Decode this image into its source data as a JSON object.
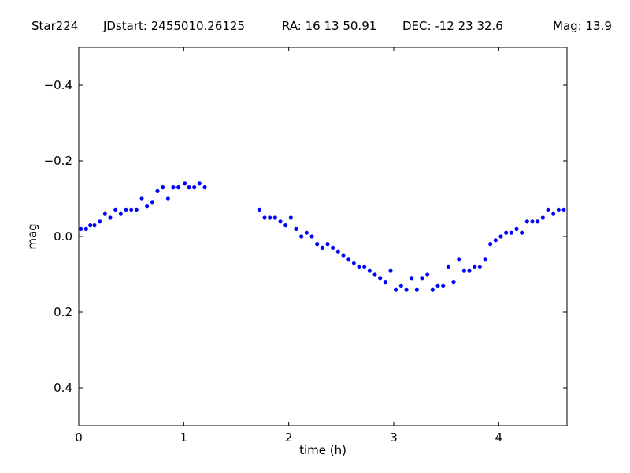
{
  "header": {
    "star": "Star224",
    "jdstart": "JDstart: 2455010.26125",
    "ra": "RA: 16 13 50.91",
    "dec": "DEC: -12 23 32.6",
    "mag": "Mag: 13.9"
  },
  "chart_data": {
    "type": "scatter",
    "xlabel": "time (h)",
    "ylabel": "mag",
    "xlim": [
      0,
      4.65
    ],
    "ylim": [
      -0.5,
      0.5
    ],
    "y_inverted": true,
    "grid": false,
    "marker_color": "#0000ff",
    "xticks": [
      0,
      1,
      2,
      3,
      4
    ],
    "xtick_labels": [
      "0",
      "1",
      "2",
      "3",
      "4"
    ],
    "yticks": [
      -0.4,
      -0.2,
      0.0,
      0.2,
      0.4
    ],
    "ytick_labels": [
      "−0.4",
      "−0.2",
      "0.0",
      "0.2",
      "0.4"
    ],
    "x": [
      0.02,
      0.07,
      0.11,
      0.15,
      0.2,
      0.25,
      0.3,
      0.35,
      0.4,
      0.45,
      0.5,
      0.55,
      0.6,
      0.65,
      0.7,
      0.75,
      0.8,
      0.85,
      0.9,
      0.95,
      1.01,
      1.05,
      1.1,
      1.15,
      1.2,
      1.72,
      1.77,
      1.82,
      1.87,
      1.92,
      1.97,
      2.02,
      2.07,
      2.12,
      2.17,
      2.22,
      2.27,
      2.32,
      2.37,
      2.42,
      2.47,
      2.52,
      2.57,
      2.62,
      2.67,
      2.72,
      2.77,
      2.82,
      2.87,
      2.92,
      2.97,
      3.02,
      3.07,
      3.12,
      3.17,
      3.22,
      3.27,
      3.32,
      3.37,
      3.42,
      3.47,
      3.52,
      3.57,
      3.62,
      3.67,
      3.72,
      3.77,
      3.82,
      3.87,
      3.92,
      3.97,
      4.02,
      4.07,
      4.12,
      4.17,
      4.22,
      4.27,
      4.32,
      4.37,
      4.42,
      4.47,
      4.52,
      4.57,
      4.62
    ],
    "y": [
      -0.02,
      -0.02,
      -0.03,
      -0.03,
      -0.04,
      -0.06,
      -0.05,
      -0.07,
      -0.06,
      -0.07,
      -0.07,
      -0.07,
      -0.1,
      -0.08,
      -0.09,
      -0.12,
      -0.13,
      -0.1,
      -0.13,
      -0.13,
      -0.14,
      -0.13,
      -0.13,
      -0.14,
      -0.13,
      -0.07,
      -0.05,
      -0.05,
      -0.05,
      -0.04,
      -0.03,
      -0.05,
      -0.02,
      0.0,
      -0.01,
      0.0,
      0.02,
      0.03,
      0.02,
      0.03,
      0.04,
      0.05,
      0.06,
      0.07,
      0.08,
      0.08,
      0.09,
      0.1,
      0.11,
      0.12,
      0.09,
      0.14,
      0.13,
      0.14,
      0.11,
      0.14,
      0.11,
      0.1,
      0.14,
      0.13,
      0.13,
      0.08,
      0.12,
      0.06,
      0.09,
      0.09,
      0.08,
      0.08,
      0.06,
      0.02,
      0.01,
      0.0,
      -0.01,
      -0.01,
      -0.02,
      -0.01,
      -0.04,
      -0.04,
      -0.04,
      -0.05,
      -0.07,
      -0.06,
      -0.07,
      -0.07
    ]
  }
}
